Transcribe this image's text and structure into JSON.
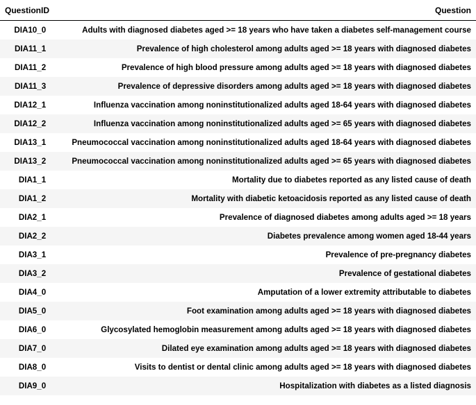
{
  "table": {
    "headers": {
      "id": "QuestionID",
      "question": "Question"
    },
    "rows": [
      {
        "id": "DIA10_0",
        "question": "Adults with diagnosed diabetes aged >= 18 years who have taken a diabetes self-management course"
      },
      {
        "id": "DIA11_1",
        "question": "Prevalence of high cholesterol among adults aged >= 18 years with diagnosed diabetes"
      },
      {
        "id": "DIA11_2",
        "question": "Prevalence of high blood pressure among adults aged >= 18 years with diagnosed diabetes"
      },
      {
        "id": "DIA11_3",
        "question": "Prevalence of depressive disorders among adults aged >= 18 years with diagnosed diabetes"
      },
      {
        "id": "DIA12_1",
        "question": "Influenza vaccination among noninstitutionalized adults aged 18-64 years with diagnosed diabetes"
      },
      {
        "id": "DIA12_2",
        "question": "Influenza vaccination among noninstitutionalized adults aged >= 65 years with diagnosed diabetes"
      },
      {
        "id": "DIA13_1",
        "question": "Pneumococcal vaccination among noninstitutionalized adults aged 18-64 years with diagnosed diabetes"
      },
      {
        "id": "DIA13_2",
        "question": "Pneumococcal vaccination among noninstitutionalized adults aged >= 65 years with diagnosed diabetes"
      },
      {
        "id": "DIA1_1",
        "question": "Mortality due to diabetes reported as any listed cause of death"
      },
      {
        "id": "DIA1_2",
        "question": "Mortality with diabetic ketoacidosis reported as any listed cause of death"
      },
      {
        "id": "DIA2_1",
        "question": "Prevalence of diagnosed diabetes among adults aged >= 18 years"
      },
      {
        "id": "DIA2_2",
        "question": "Diabetes prevalence among women aged 18-44 years"
      },
      {
        "id": "DIA3_1",
        "question": "Prevalence of pre-pregnancy diabetes"
      },
      {
        "id": "DIA3_2",
        "question": "Prevalence of gestational diabetes"
      },
      {
        "id": "DIA4_0",
        "question": "Amputation of a lower extremity attributable to diabetes"
      },
      {
        "id": "DIA5_0",
        "question": "Foot examination among adults aged >= 18 years with diagnosed diabetes"
      },
      {
        "id": "DIA6_0",
        "question": "Glycosylated hemoglobin measurement among adults aged >= 18 years with diagnosed diabetes"
      },
      {
        "id": "DIA7_0",
        "question": "Dilated eye examination among adults aged >= 18 years with diagnosed diabetes"
      },
      {
        "id": "DIA8_0",
        "question": "Visits to dentist or dental clinic among adults aged >= 18 years with diagnosed diabetes"
      },
      {
        "id": "DIA9_0",
        "question": "Hospitalization with diabetes as a listed diagnosis"
      }
    ]
  }
}
